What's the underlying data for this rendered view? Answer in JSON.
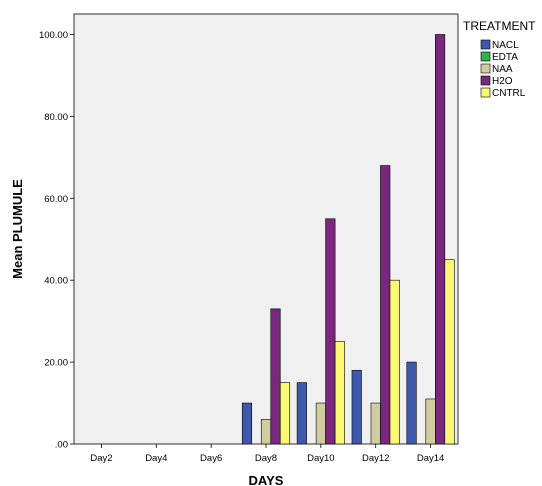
{
  "chart_data": {
    "type": "bar",
    "categories": [
      "Day2",
      "Day4",
      "Day6",
      "Day8",
      "Day10",
      "Day12",
      "Day14"
    ],
    "series": [
      {
        "name": "NACL",
        "values": [
          0,
          0,
          0,
          10,
          15,
          18,
          20
        ]
      },
      {
        "name": "EDTA",
        "values": [
          0,
          0,
          0,
          0,
          0,
          0,
          0
        ]
      },
      {
        "name": "NAA",
        "values": [
          0,
          0,
          0,
          6,
          10,
          10,
          11
        ]
      },
      {
        "name": "H2O",
        "values": [
          0,
          0,
          0,
          33,
          55,
          68,
          100
        ]
      },
      {
        "name": "CNTRL",
        "values": [
          0,
          0,
          0,
          15,
          25,
          40,
          45
        ]
      }
    ],
    "colors": [
      "#3e58ac",
      "#2db34a",
      "#d2cca1",
      "#79287d",
      "#fbf873"
    ],
    "xlabel": "DAYS",
    "ylabel": "Mean PLUMULE",
    "ylim": [
      0,
      105
    ],
    "yticks": [
      ".00",
      "20.00",
      "40.00",
      "60.00",
      "80.00",
      "100.00"
    ],
    "legend_title": "TREATMENT",
    "legend_position": "right",
    "grid": false,
    "plot_background": "#f0f0f0"
  }
}
